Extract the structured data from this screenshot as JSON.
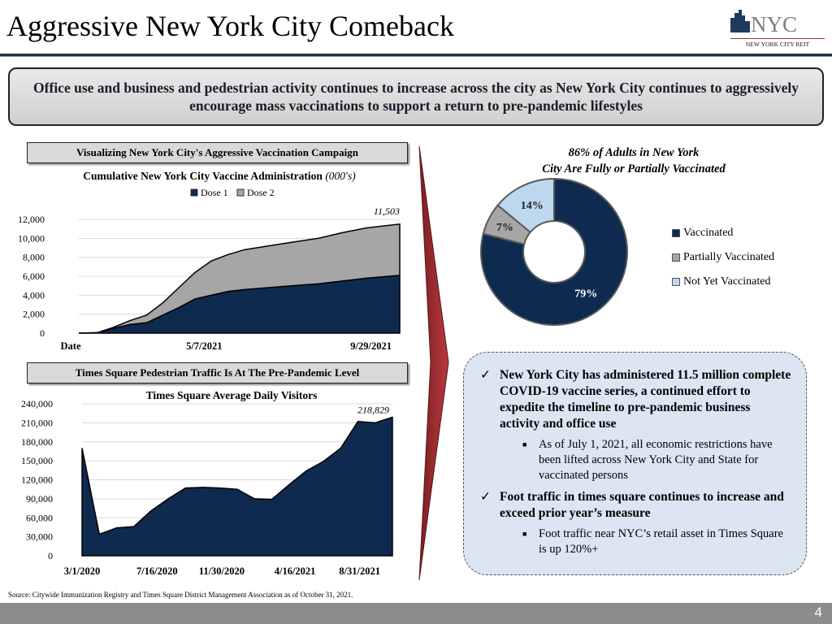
{
  "title": "Aggressive New York City Comeback",
  "logo": {
    "text": "NYC",
    "subtext": "NEW YORK CITY REIT"
  },
  "banner": "Office use and business and pedestrian activity continues to increase across the city as New York City continues to aggressively encourage mass vaccinations to support a return to pre-pandemic lifestyles",
  "section1": "Visualizing New York City's Aggressive Vaccination Campaign",
  "section2": "Times Square Pedestrian Traffic Is At The Pre-Pandemic Level",
  "chart_data": [
    {
      "type": "area",
      "stacked": true,
      "title": "Cumulative New York City Vaccine Administration",
      "title_unit": "(000's)",
      "x": [
        "2021-01-18",
        "2021-02-03",
        "2021-02-17",
        "2021-03-03",
        "2021-03-18",
        "2021-04-01",
        "2021-04-15",
        "2021-04-29",
        "2021-05-13",
        "2021-05-28",
        "2021-06-11",
        "2021-07-02",
        "2021-07-23",
        "2021-08-14",
        "2021-09-04",
        "2021-09-25",
        "2021-10-24"
      ],
      "series": [
        {
          "name": "Dose 1",
          "color": "#0e2a4f",
          "values": [
            0,
            30,
            500,
            900,
            1100,
            1900,
            2700,
            3600,
            4000,
            4400,
            4600,
            4800,
            5000,
            5200,
            5500,
            5800,
            6100
          ]
        },
        {
          "name": "Dose 2",
          "color": "#a6a6a6",
          "values": [
            0,
            20,
            100,
            400,
            800,
            1300,
            2100,
            2800,
            3600,
            3900,
            4200,
            4400,
            4600,
            4800,
            5100,
            5300,
            5403
          ]
        }
      ],
      "x_ticks": [
        {
          "date": "2021-01-18",
          "label": "Date"
        },
        {
          "date": "2021-05-07",
          "label": "5/7/2021"
        },
        {
          "date": "2021-09-29",
          "label": "9/29/2021"
        }
      ],
      "y_ticks": [
        "0",
        "2,000",
        "4,000",
        "6,000",
        "8,000",
        "10,000",
        "12,000"
      ],
      "ylim": [
        0,
        12000
      ],
      "annotation": "11,503",
      "grid": true,
      "legend": "top"
    },
    {
      "type": "area",
      "title": "Times Square Average Daily Visitors",
      "series": [
        {
          "color": "#0e2a4f",
          "values": [
            170000,
            34000,
            44000,
            46000,
            71000,
            90000,
            107000,
            108000,
            107000,
            105000,
            90000,
            89000,
            112000,
            134000,
            149000,
            170000,
            212000,
            210000,
            218829
          ]
        }
      ],
      "x_ticks": [
        {
          "index": 0,
          "label": "3/1/2020"
        },
        {
          "index": 4.35,
          "label": "7/16/2020"
        },
        {
          "index": 8.1,
          "label": "11/30/2020"
        },
        {
          "index": 12.35,
          "label": "4/16/2021"
        },
        {
          "index": 16.1,
          "label": "8/31/2021"
        }
      ],
      "y_ticks": [
        "0",
        "30,000",
        "60,000",
        "90,000",
        "120,000",
        "150,000",
        "180,000",
        "210,000",
        "240,000"
      ],
      "ylim": [
        0,
        240000
      ],
      "annotation": "218,829",
      "grid": true
    },
    {
      "type": "pie",
      "donut": true,
      "title_line1": "86% of Adults in New York",
      "title_line2": "City Are Fully or Partially Vaccinated",
      "slices": [
        {
          "name": "Vaccinated",
          "value": 79,
          "label": "79%",
          "color": "#0e2a4f"
        },
        {
          "name": "Partially Vaccinated",
          "value": 7,
          "label": "7%",
          "color": "#a6a6a6"
        },
        {
          "name": "Not Yet Vaccinated",
          "value": 14,
          "label": "14%",
          "color": "#bdd7ee"
        }
      ],
      "legend": "right"
    }
  ],
  "notes": [
    {
      "marker": "✓",
      "text": "New York City has administered 11.5 million complete COVID-19 vaccine series, a continued effort to expedite the timeline to pre-pandemic business activity and office use",
      "sub": "As of July 1, 2021, all economic restrictions have been lifted across New York City and State for vaccinated persons"
    },
    {
      "marker": "✓",
      "text": "Foot traffic in times square continues to increase and exceed prior year’s measure",
      "sub": "Foot traffic near NYC’s retail asset in Times Square is up 120%+"
    }
  ],
  "sub_marker": "■",
  "source": "Source: Citywide Immunization Registry and Times Square District Management Association as of October 31, 2021.",
  "page_number": "4"
}
